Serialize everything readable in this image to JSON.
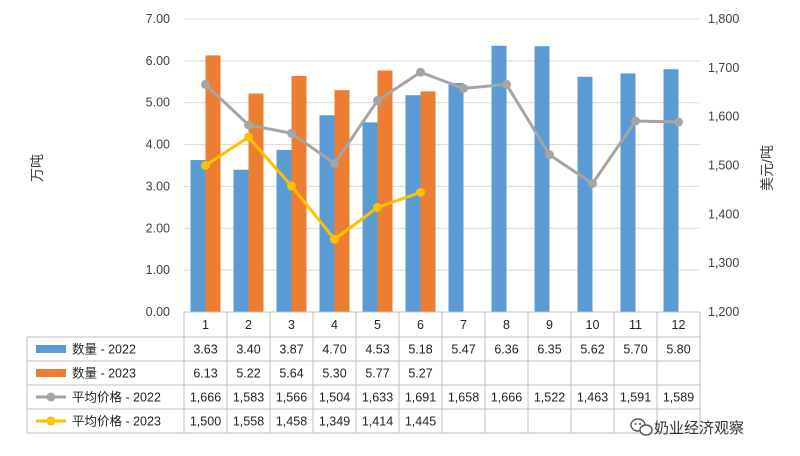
{
  "chart_data": {
    "type": "bar",
    "categories": [
      "1",
      "2",
      "3",
      "4",
      "5",
      "6",
      "7",
      "8",
      "9",
      "10",
      "11",
      "12"
    ],
    "ylabel": "万吨",
    "y2label": "美元/吨",
    "ylim": [
      0,
      7
    ],
    "y2lim": [
      1200,
      1800
    ],
    "yticks": [
      "0.00",
      "1.00",
      "2.00",
      "3.00",
      "4.00",
      "5.00",
      "6.00",
      "7.00"
    ],
    "y2ticks": [
      "1,200",
      "1,300",
      "1,400",
      "1,500",
      "1,600",
      "1,700",
      "1,800"
    ],
    "grid": true,
    "legend": "bottom (data table)",
    "series": [
      {
        "name": "数量 - 2022",
        "type": "bar",
        "axis": "left",
        "color": "#5B9BD5",
        "values": [
          3.63,
          3.4,
          3.87,
          4.7,
          4.53,
          5.18,
          5.47,
          6.36,
          6.35,
          5.62,
          5.7,
          5.8
        ],
        "labels": [
          "3.63",
          "3.40",
          "3.87",
          "4.70",
          "4.53",
          "5.18",
          "5.47",
          "6.36",
          "6.35",
          "5.62",
          "5.70",
          "5.80"
        ]
      },
      {
        "name": "数量 - 2023",
        "type": "bar",
        "axis": "left",
        "color": "#ED7D31",
        "values": [
          6.13,
          5.22,
          5.64,
          5.3,
          5.77,
          5.27,
          null,
          null,
          null,
          null,
          null,
          null
        ],
        "labels": [
          "6.13",
          "5.22",
          "5.64",
          "5.30",
          "5.77",
          "5.27",
          "",
          "",
          "",
          "",
          "",
          ""
        ]
      },
      {
        "name": "平均价格 - 2022",
        "type": "line",
        "axis": "right",
        "color": "#A5A5A5",
        "values": [
          1666,
          1583,
          1566,
          1504,
          1633,
          1691,
          1658,
          1666,
          1522,
          1463,
          1591,
          1589
        ],
        "labels": [
          "1,666",
          "1,583",
          "1,566",
          "1,504",
          "1,633",
          "1,691",
          "1,658",
          "1,666",
          "1,522",
          "1,463",
          "1,591",
          "1,589"
        ]
      },
      {
        "name": "平均价格 - 2023",
        "type": "line",
        "axis": "right",
        "color": "#FFC000",
        "values": [
          1500,
          1558,
          1458,
          1349,
          1414,
          1445,
          null,
          null,
          null,
          null,
          null,
          null
        ],
        "labels": [
          "1,500",
          "1,558",
          "1,458",
          "1,349",
          "1,414",
          "1,445",
          "",
          "",
          "",
          "",
          "",
          ""
        ]
      }
    ]
  },
  "watermark": {
    "text": "奶业经济观察",
    "icon": "wechat-icon"
  }
}
